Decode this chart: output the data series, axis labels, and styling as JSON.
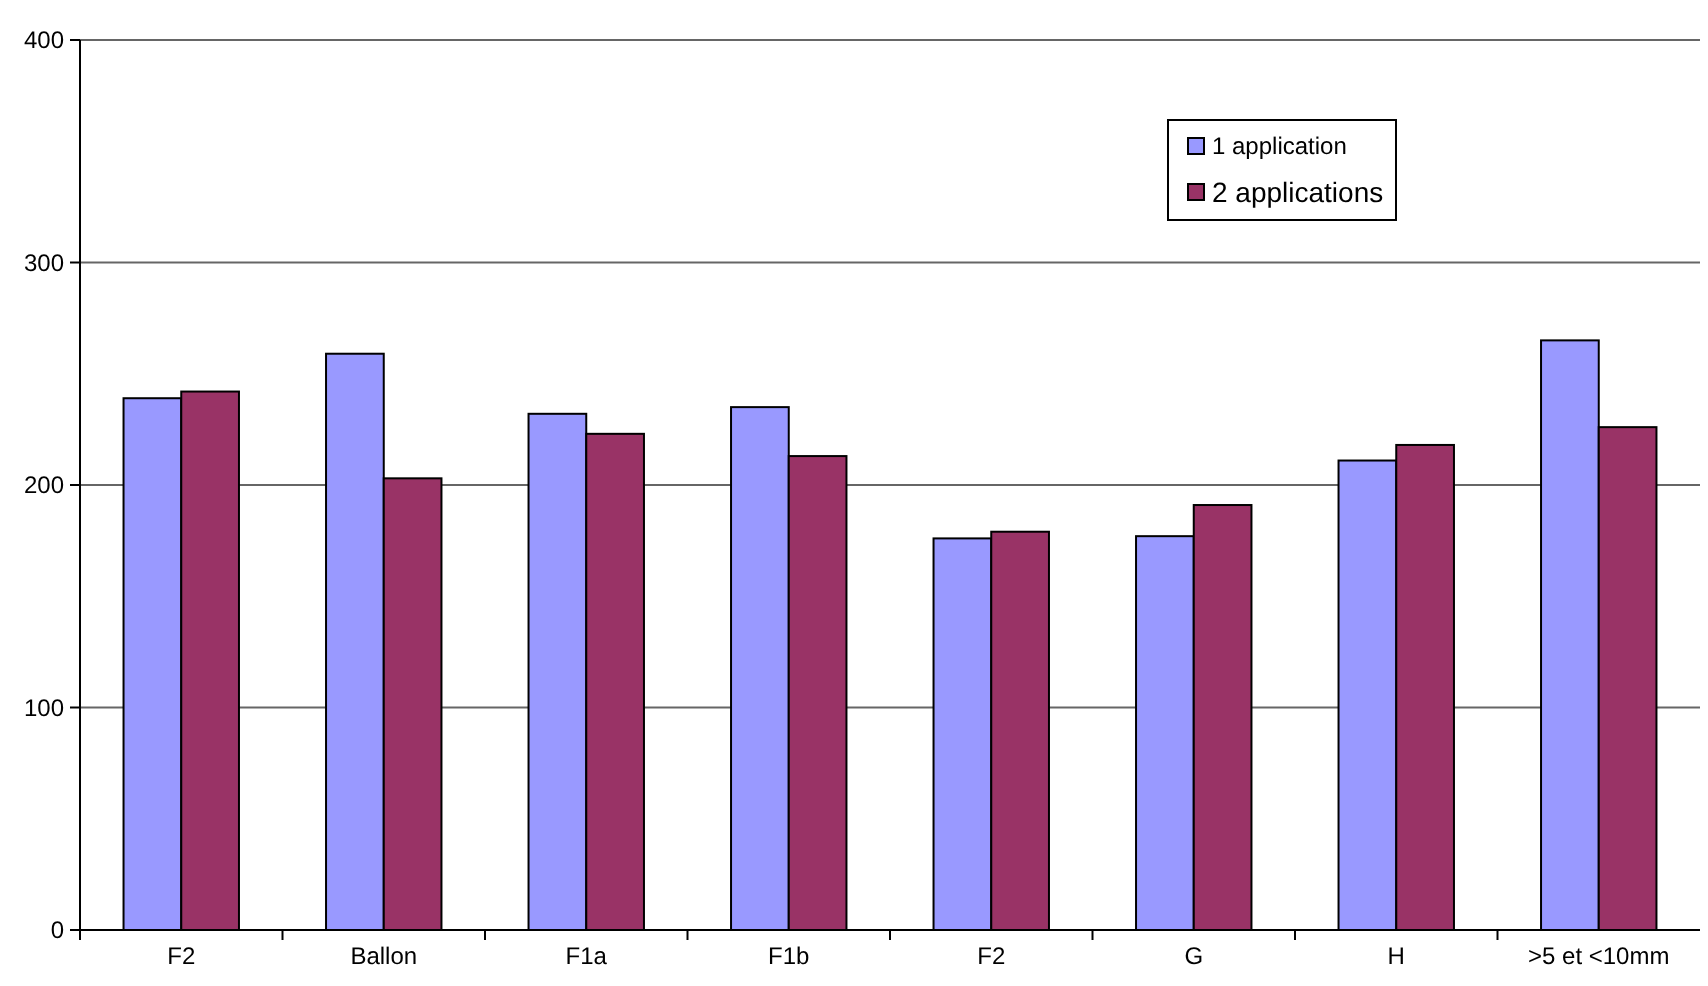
{
  "chart_data": {
    "type": "bar",
    "categories": [
      "F2",
      "Ballon",
      "F1a",
      "F1b",
      "F2",
      "G",
      "H",
      ">5 et <10mm"
    ],
    "series": [
      {
        "name": "1 application",
        "color": "#9999ff",
        "values": [
          239,
          259,
          232,
          235,
          176,
          177,
          211,
          265
        ]
      },
      {
        "name": "2 applications",
        "color": "#993366",
        "values": [
          242,
          203,
          223,
          213,
          179,
          191,
          218,
          226
        ]
      }
    ],
    "ylim": [
      0,
      400
    ],
    "yticks": [
      0,
      100,
      200,
      300,
      400
    ],
    "grid": "y",
    "legend": "top right"
  }
}
